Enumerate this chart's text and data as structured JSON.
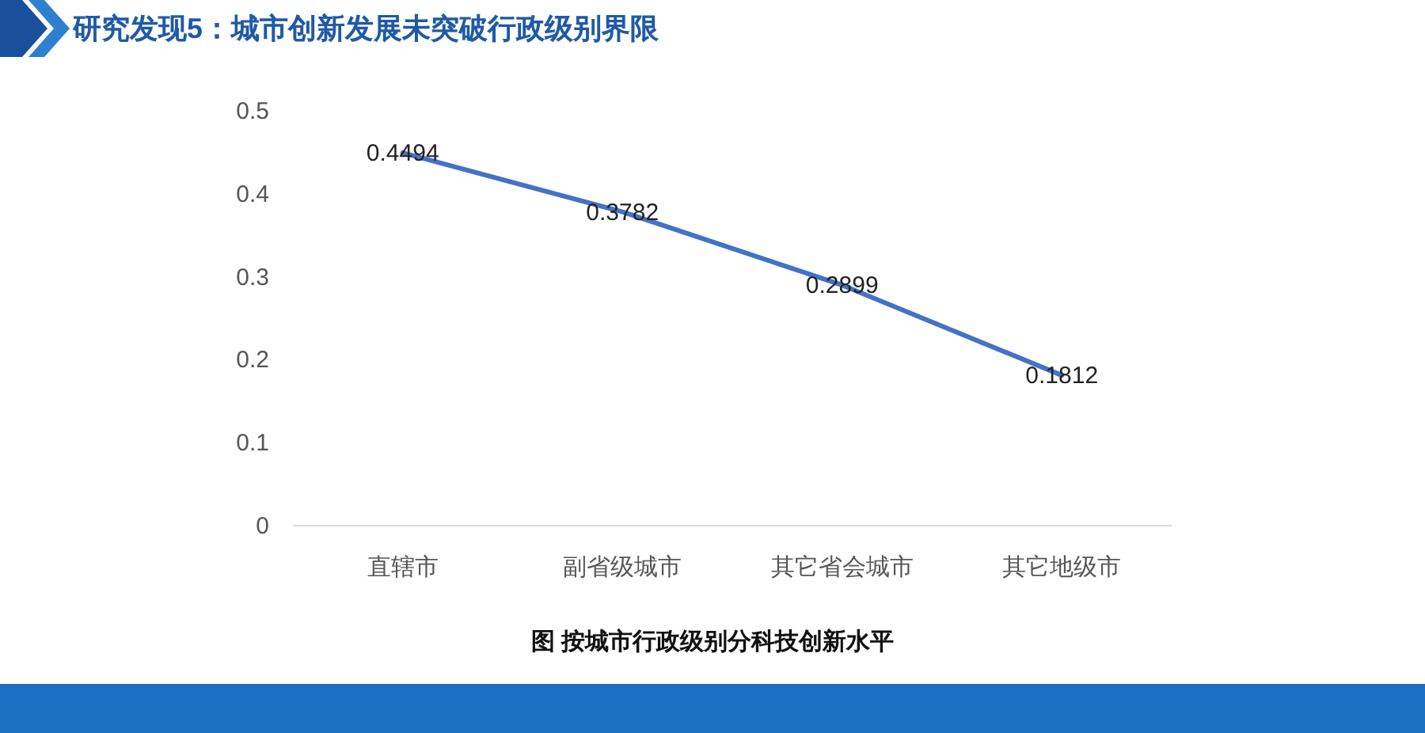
{
  "chart_data": {
    "type": "line",
    "title": "研究发现5：城市创新发展未突破行政级别界限",
    "annotations": [
      "图 按城市行政级别分科技创新水平"
    ],
    "categories": [
      "直辖市",
      "副省级城市",
      "其它省会城市",
      "其它地级市"
    ],
    "series": [
      {
        "color": "#4472c4",
        "values": [
          0.4494,
          0.3782,
          0.2899,
          0.1812
        ]
      }
    ],
    "ylim": [
      0,
      0.5
    ],
    "yticks": [
      0,
      0.1,
      0.2,
      0.3,
      0.4,
      0.5
    ],
    "grid": false,
    "data_labels": true,
    "marker": "none"
  }
}
